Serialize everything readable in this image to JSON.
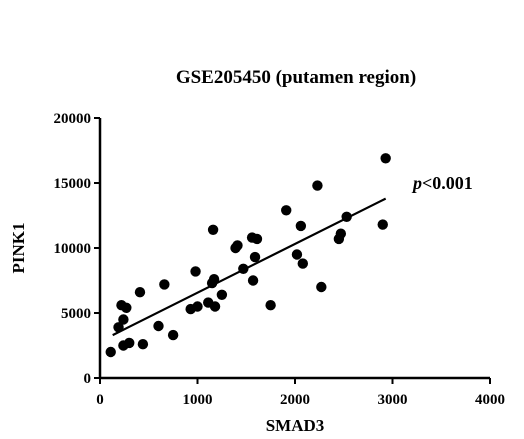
{
  "chart_data": {
    "type": "scatter",
    "title": "GSE205450 (putamen region)",
    "xlabel": "SMAD3",
    "ylabel": "PINK1",
    "xlim": [
      0,
      4000
    ],
    "ylim": [
      0,
      20000
    ],
    "x_ticks": [
      0,
      1000,
      2000,
      3000,
      4000
    ],
    "y_ticks": [
      0,
      5000,
      10000,
      15000,
      20000
    ],
    "annotation": {
      "italic": "p",
      "rest": "<0.001"
    },
    "grid": false,
    "marker_color": "#000000",
    "points": [
      {
        "x": 110,
        "y": 2000
      },
      {
        "x": 190,
        "y": 3900
      },
      {
        "x": 220,
        "y": 5600
      },
      {
        "x": 240,
        "y": 4500
      },
      {
        "x": 240,
        "y": 2500
      },
      {
        "x": 270,
        "y": 5400
      },
      {
        "x": 300,
        "y": 2700
      },
      {
        "x": 410,
        "y": 6600
      },
      {
        "x": 440,
        "y": 2600
      },
      {
        "x": 600,
        "y": 4000
      },
      {
        "x": 660,
        "y": 7200
      },
      {
        "x": 750,
        "y": 3300
      },
      {
        "x": 930,
        "y": 5300
      },
      {
        "x": 980,
        "y": 8200
      },
      {
        "x": 1000,
        "y": 5500
      },
      {
        "x": 1110,
        "y": 5800
      },
      {
        "x": 1150,
        "y": 7300
      },
      {
        "x": 1160,
        "y": 11400
      },
      {
        "x": 1170,
        "y": 7600
      },
      {
        "x": 1180,
        "y": 5500
      },
      {
        "x": 1250,
        "y": 6400
      },
      {
        "x": 1390,
        "y": 10000
      },
      {
        "x": 1410,
        "y": 10200
      },
      {
        "x": 1470,
        "y": 8400
      },
      {
        "x": 1560,
        "y": 10800
      },
      {
        "x": 1570,
        "y": 7500
      },
      {
        "x": 1590,
        "y": 9300
      },
      {
        "x": 1610,
        "y": 10700
      },
      {
        "x": 1750,
        "y": 5600
      },
      {
        "x": 1910,
        "y": 12900
      },
      {
        "x": 2020,
        "y": 9500
      },
      {
        "x": 2060,
        "y": 11700
      },
      {
        "x": 2080,
        "y": 8800
      },
      {
        "x": 2230,
        "y": 14800
      },
      {
        "x": 2270,
        "y": 7000
      },
      {
        "x": 2450,
        "y": 10700
      },
      {
        "x": 2470,
        "y": 11100
      },
      {
        "x": 2530,
        "y": 12400
      },
      {
        "x": 2900,
        "y": 11800
      },
      {
        "x": 2930,
        "y": 16900
      }
    ],
    "fit_line": {
      "x": [
        130,
        2930
      ],
      "y": [
        3300,
        13800
      ]
    }
  }
}
